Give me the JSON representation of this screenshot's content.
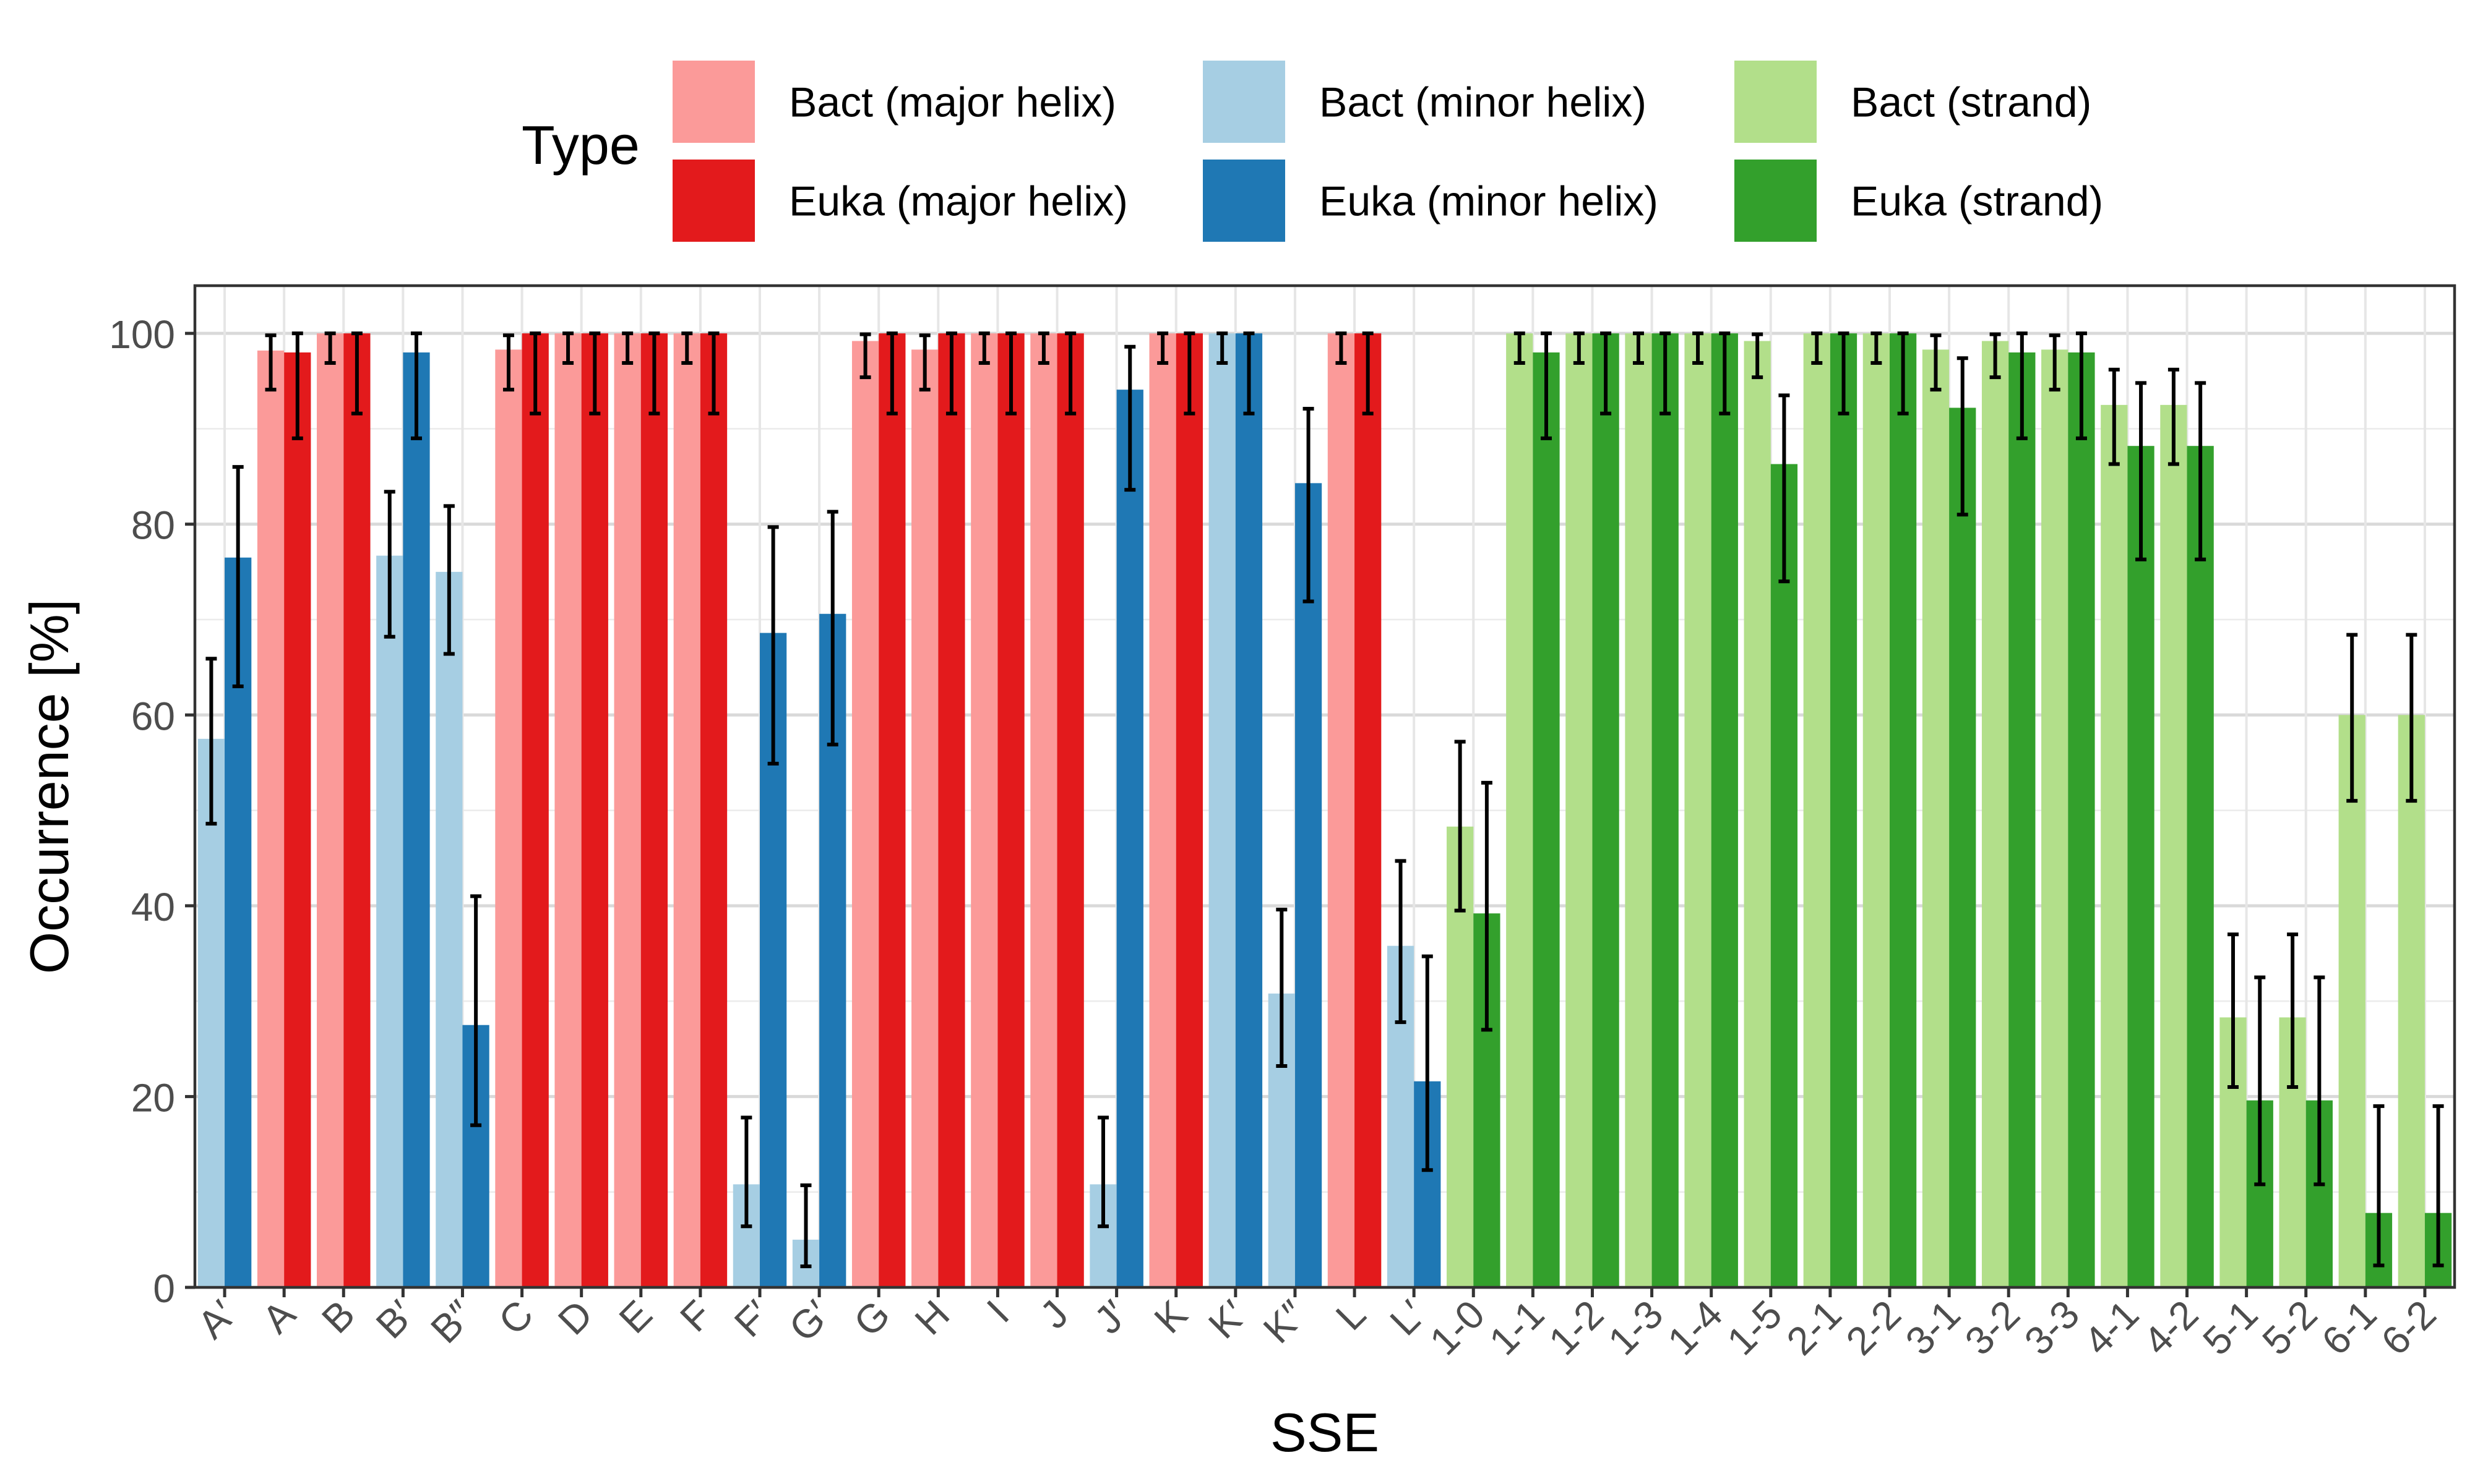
{
  "chart_data": {
    "type": "bar",
    "xlabel": "SSE",
    "ylabel": "Occurrence [%]",
    "ylim": [
      0,
      105
    ],
    "yticks": [
      0,
      20,
      40,
      60,
      80,
      100
    ],
    "grid": true,
    "legend": {
      "title": "Type",
      "position": "top",
      "entries": [
        {
          "label": "Bact (major helix)",
          "color": "#fb9a99"
        },
        {
          "label": "Euka (major helix)",
          "color": "#e31a1c"
        },
        {
          "label": "Bact (minor helix)",
          "color": "#a6cee3"
        },
        {
          "label": "Euka (minor helix)",
          "color": "#1f78b4"
        },
        {
          "label": "Bact (strand)",
          "color": "#b2df8a"
        },
        {
          "label": "Euka (strand)",
          "color": "#33a02c"
        }
      ]
    },
    "categories": [
      "A'",
      "A",
      "B",
      "B'",
      "B''",
      "C",
      "D",
      "E",
      "F",
      "F'",
      "G'",
      "G",
      "H",
      "I",
      "J",
      "J'",
      "K",
      "K'",
      "K''",
      "L",
      "L'",
      "1-0",
      "1-1",
      "1-2",
      "1-3",
      "1-4",
      "1-5",
      "2-1",
      "2-2",
      "3-1",
      "3-2",
      "3-3",
      "4-1",
      "4-2",
      "5-1",
      "5-2",
      "6-1",
      "6-2"
    ],
    "category_kind": [
      "minor",
      "major",
      "major",
      "minor",
      "minor",
      "major",
      "major",
      "major",
      "major",
      "minor",
      "minor",
      "major",
      "major",
      "major",
      "major",
      "minor",
      "major",
      "minor",
      "minor",
      "major",
      "minor",
      "strand",
      "strand",
      "strand",
      "strand",
      "strand",
      "strand",
      "strand",
      "strand",
      "strand",
      "strand",
      "strand",
      "strand",
      "strand",
      "strand",
      "strand",
      "strand",
      "strand"
    ],
    "series": [
      {
        "name": "Bact",
        "values": [
          57.5,
          98.2,
          100,
          76.7,
          75.0,
          98.3,
          100,
          100,
          100,
          10.8,
          5.0,
          99.2,
          98.3,
          100,
          100,
          10.8,
          100,
          100,
          30.8,
          100,
          35.8,
          48.3,
          100,
          100,
          100,
          100,
          99.2,
          100,
          100,
          98.3,
          99.2,
          98.3,
          92.5,
          92.5,
          28.3,
          28.3,
          60.0,
          60.0
        ],
        "err_low": [
          48.6,
          94.1,
          96.9,
          68.2,
          66.4,
          94.1,
          96.9,
          96.9,
          96.9,
          6.4,
          2.2,
          95.4,
          94.1,
          96.9,
          96.9,
          6.4,
          96.9,
          96.9,
          23.2,
          96.9,
          27.8,
          39.5,
          96.9,
          96.9,
          96.9,
          96.9,
          95.4,
          96.9,
          96.9,
          94.1,
          95.4,
          94.1,
          86.3,
          86.3,
          21.0,
          21.0,
          51.0,
          51.0
        ],
        "err_high": [
          65.9,
          99.8,
          100,
          83.4,
          81.9,
          99.8,
          100,
          100,
          100,
          17.8,
          10.7,
          99.9,
          99.8,
          100,
          100,
          17.8,
          100,
          100,
          39.6,
          100,
          44.7,
          57.2,
          100,
          100,
          100,
          100,
          99.9,
          100,
          100,
          99.8,
          99.9,
          99.8,
          96.2,
          96.2,
          37.0,
          37.0,
          68.4,
          68.4
        ]
      },
      {
        "name": "Euka",
        "values": [
          76.5,
          98.0,
          100,
          98.0,
          27.5,
          100,
          100,
          100,
          100,
          68.6,
          70.6,
          100,
          100,
          100,
          100,
          94.1,
          100,
          100,
          84.3,
          100,
          21.6,
          39.2,
          98.0,
          100,
          100,
          100,
          86.3,
          100,
          100,
          92.2,
          98.0,
          98.0,
          88.2,
          88.2,
          19.6,
          19.6,
          7.8,
          7.8
        ],
        "err_low": [
          63.0,
          89.0,
          91.6,
          89.0,
          17.0,
          91.6,
          91.6,
          91.6,
          91.6,
          54.9,
          56.9,
          91.6,
          91.6,
          91.6,
          91.6,
          83.6,
          91.6,
          91.6,
          71.9,
          91.6,
          12.3,
          27.0,
          89.0,
          91.6,
          91.6,
          91.6,
          74.0,
          91.6,
          91.6,
          81.0,
          89.0,
          89.0,
          76.3,
          76.3,
          10.8,
          10.8,
          2.3,
          2.3
        ],
        "err_high": [
          86.0,
          100,
          100,
          100,
          41.0,
          100,
          100,
          100,
          100,
          79.7,
          81.3,
          100,
          100,
          100,
          100,
          98.6,
          100,
          100,
          92.1,
          100,
          34.7,
          52.9,
          100,
          100,
          100,
          100,
          93.5,
          100,
          100,
          97.4,
          100,
          100,
          94.8,
          94.8,
          32.5,
          32.5,
          19.0,
          19.0
        ]
      }
    ]
  }
}
